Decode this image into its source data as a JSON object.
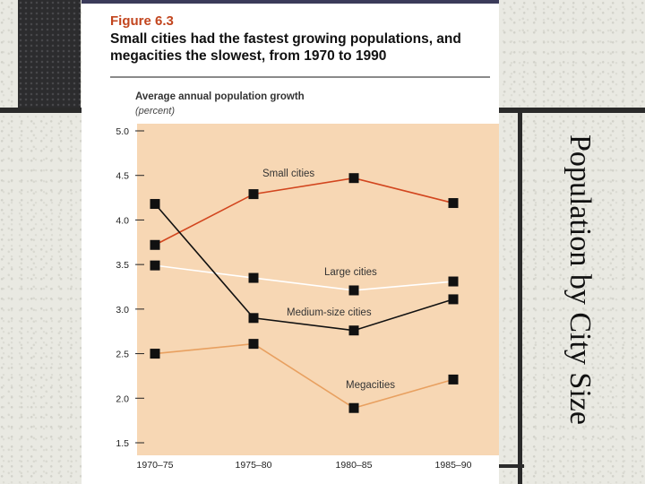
{
  "slide": {
    "title": "Population by City Size"
  },
  "chart_data": {
    "type": "line",
    "figure_number": "Figure 6.3",
    "title": "Small cities had the fastest growing populations, and megacities the slowest, from 1970 to 1990",
    "ylabel": "Average annual population growth",
    "yunit": "(percent)",
    "xlabel": "",
    "categories": [
      "1970–75",
      "1975–80",
      "1980–85",
      "1985–90"
    ],
    "ylim": [
      1.5,
      5.0
    ],
    "yticks": [
      "1.5",
      "2.0",
      "2.5",
      "3.0",
      "3.5",
      "4.0",
      "4.5",
      "5.0"
    ],
    "series": [
      {
        "name": "Small cities",
        "color": "#d2451e",
        "values": [
          3.72,
          4.29,
          4.47,
          4.19
        ]
      },
      {
        "name": "Large cities",
        "color": "#ffffff",
        "values": [
          3.49,
          3.35,
          3.21,
          3.31
        ]
      },
      {
        "name": "Medium-size cities",
        "color": "#111111",
        "values": [
          4.18,
          2.9,
          2.76,
          3.11
        ]
      },
      {
        "name": "Megacities",
        "color": "#e8a060",
        "values": [
          2.5,
          2.61,
          1.89,
          2.21
        ]
      }
    ],
    "plot_background": "#f7d7b4"
  }
}
